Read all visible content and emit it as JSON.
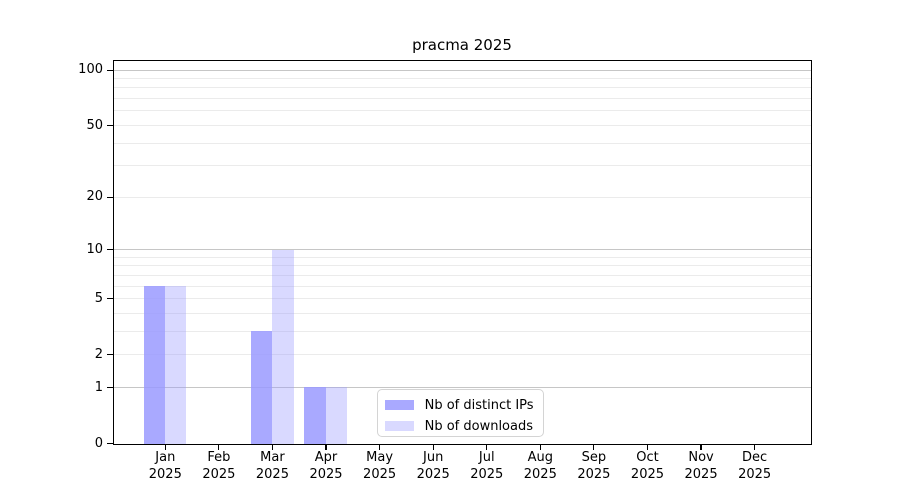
{
  "chart_data": {
    "type": "bar",
    "title": "pracma 2025",
    "x": {
      "months": [
        "Jan",
        "Feb",
        "Mar",
        "Apr",
        "May",
        "Jun",
        "Jul",
        "Aug",
        "Sep",
        "Oct",
        "Nov",
        "Dec"
      ],
      "year": "2025"
    },
    "series": [
      {
        "name": "Nb of distinct IPs",
        "color": "rgba(153,153,255,0.84)",
        "base_color": "#9999ff",
        "values": [
          6,
          0,
          3,
          1,
          0,
          0,
          0,
          0,
          0,
          0,
          0,
          0
        ]
      },
      {
        "name": "Nb of downloads",
        "color": "rgba(153,153,255,0.37)",
        "base_color": "#9999ff",
        "values": [
          6,
          0,
          10,
          1,
          0,
          0,
          0,
          0,
          0,
          0,
          0,
          0
        ]
      }
    ],
    "y_axis": {
      "scale": "log10(value+1)",
      "tick_values": [
        0,
        1,
        2,
        5,
        10,
        20,
        50,
        100
      ],
      "major_gridlines": [
        1,
        10,
        100
      ],
      "minor_gridlines": [
        2,
        3,
        4,
        5,
        6,
        7,
        8,
        9,
        20,
        30,
        40,
        50,
        60,
        70,
        80,
        90
      ],
      "range": [
        0,
        112
      ]
    },
    "grid": "horizontal",
    "legend": {
      "position": "inside-bottom-center",
      "items": [
        "Nb of distinct IPs",
        "Nb of downloads"
      ]
    },
    "colors": {
      "gridline_major": "#c6c6c6",
      "gridline_minor": "#ebebeb",
      "axis": "#000000",
      "text": "#000000",
      "legend_border": "#d4d4d4",
      "background": "#ffffff"
    }
  }
}
